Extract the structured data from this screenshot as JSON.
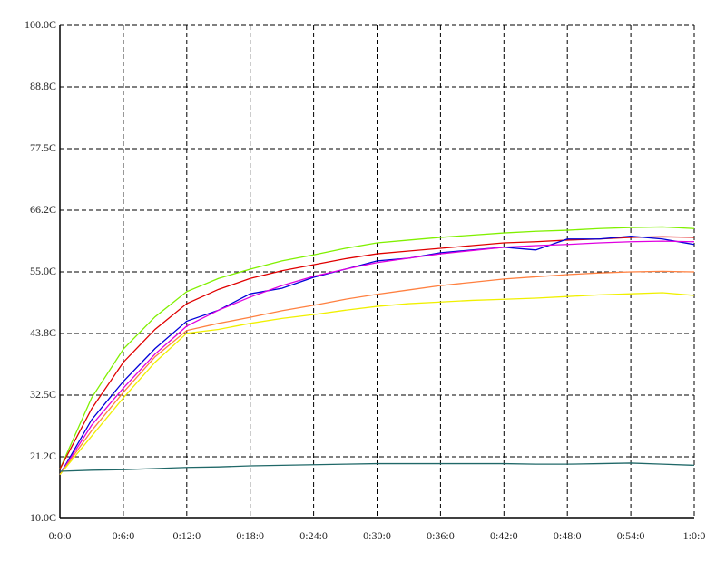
{
  "chart_data": {
    "type": "line",
    "x": [
      0,
      3,
      6,
      9,
      12,
      15,
      18,
      21,
      24,
      27,
      30,
      33,
      36,
      39,
      42,
      45,
      48,
      51,
      54,
      57,
      60
    ],
    "xlim": [
      0,
      60
    ],
    "xticks": [
      {
        "value": 0,
        "label": "0:0:0"
      },
      {
        "value": 6,
        "label": "0:6:0"
      },
      {
        "value": 12,
        "label": "0:12:0"
      },
      {
        "value": 18,
        "label": "0:18:0"
      },
      {
        "value": 24,
        "label": "0:24:0"
      },
      {
        "value": 30,
        "label": "0:30:0"
      },
      {
        "value": 36,
        "label": "0:36:0"
      },
      {
        "value": 42,
        "label": "0:42:0"
      },
      {
        "value": 48,
        "label": "0:48:0"
      },
      {
        "value": 54,
        "label": "0:54:0"
      },
      {
        "value": 60,
        "label": "1:0:0"
      }
    ],
    "ylim": [
      10,
      100
    ],
    "yticks": [
      {
        "value": 10,
        "label": "10.0C"
      },
      {
        "value": 21.25,
        "label": "21.2C"
      },
      {
        "value": 32.5,
        "label": "32.5C"
      },
      {
        "value": 43.75,
        "label": "43.8C"
      },
      {
        "value": 55,
        "label": "55.0C"
      },
      {
        "value": 66.25,
        "label": "66.2C"
      },
      {
        "value": 77.5,
        "label": "77.5C"
      },
      {
        "value": 88.75,
        "label": "88.8C"
      },
      {
        "value": 100,
        "label": "100.0C"
      }
    ],
    "grid": true,
    "series": [
      {
        "color": "#80f000",
        "values": [
          19,
          32,
          40.9,
          46.8,
          51.4,
          53.8,
          55.5,
          57,
          58.1,
          59.3,
          60.3,
          60.8,
          61.3,
          61.7,
          62.1,
          62.4,
          62.6,
          62.9,
          63.1,
          63.2,
          62.9
        ]
      },
      {
        "color": "#e00000",
        "values": [
          19,
          30,
          38.5,
          44.5,
          49.2,
          51.8,
          53.8,
          55.2,
          56.3,
          57.4,
          58.3,
          58.8,
          59.3,
          59.8,
          60.3,
          60.5,
          60.8,
          61,
          61.3,
          61.4,
          61.3
        ]
      },
      {
        "color": "#0000d8",
        "values": [
          18,
          28,
          35,
          41,
          46,
          48,
          51,
          52,
          54,
          55.5,
          57,
          57.5,
          58.5,
          59,
          59.5,
          59,
          61,
          61,
          61.5,
          61,
          60
        ]
      },
      {
        "color": "#e000e0",
        "values": [
          18,
          27,
          33.8,
          40,
          45.1,
          48,
          50.4,
          52.5,
          54.2,
          55.5,
          56.7,
          57.5,
          58.3,
          58.9,
          59.5,
          59.8,
          60,
          60.3,
          60.5,
          60.6,
          60.5
        ]
      },
      {
        "color": "#ff8040",
        "values": [
          18,
          26,
          33,
          39.5,
          44.3,
          45.6,
          46.7,
          47.9,
          48.9,
          50,
          50.9,
          51.7,
          52.5,
          53.1,
          53.7,
          54.1,
          54.5,
          54.8,
          55,
          55.1,
          55
        ]
      },
      {
        "color": "#f0f000",
        "values": [
          18,
          25,
          32,
          38.5,
          43.8,
          44.5,
          45.6,
          46.5,
          47.2,
          48,
          48.7,
          49.2,
          49.5,
          49.8,
          50,
          50.2,
          50.5,
          50.8,
          51,
          51.2,
          50.7
        ]
      },
      {
        "color": "#206868",
        "values": [
          18.6,
          18.8,
          18.9,
          19.1,
          19.3,
          19.4,
          19.6,
          19.7,
          19.8,
          19.9,
          20,
          20,
          20,
          20,
          20,
          19.9,
          19.9,
          20,
          20.1,
          19.9,
          19.7
        ]
      }
    ]
  }
}
